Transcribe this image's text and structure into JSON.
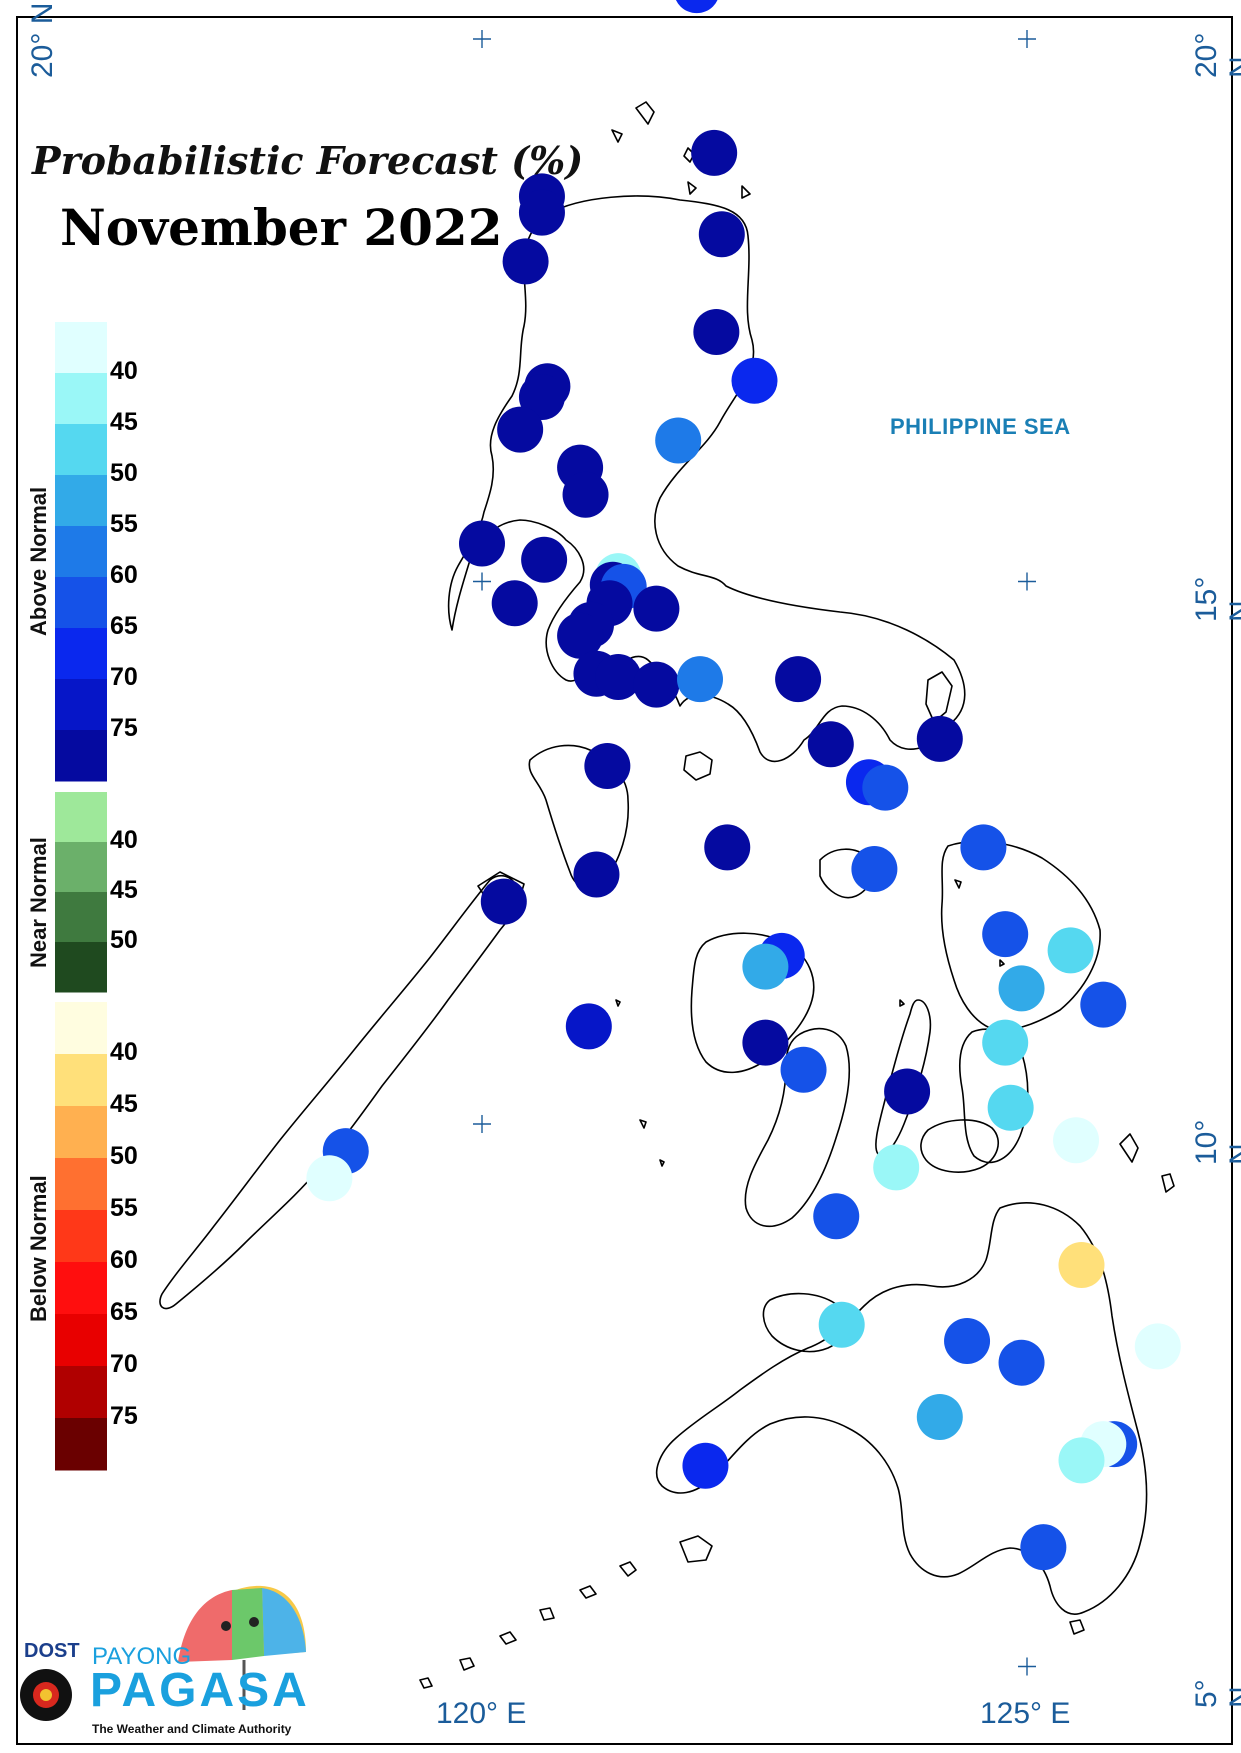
{
  "title": "Probabilistic Forecast (%)",
  "subtitle": "November 2022",
  "sea_label": "PHILIPPINE SEA",
  "lat_labels": [
    "20° N",
    "15° N",
    "10° N",
    "5° N"
  ],
  "lon_labels": [
    "120° E",
    "125° E"
  ],
  "legend": {
    "groups": [
      {
        "label": "Above Normal",
        "colors": [
          "#e0ffff",
          "#9af7f7",
          "#55d8f0",
          "#32aae8",
          "#1e7ae8",
          "#1552e8",
          "#0a28ee",
          "#0616c8",
          "#050aa0"
        ],
        "ticks": [
          "40",
          "45",
          "50",
          "55",
          "60",
          "65",
          "70",
          "75"
        ]
      },
      {
        "label": "Near Normal",
        "colors": [
          "#9ee89a",
          "#6bb06a",
          "#3f7a3f",
          "#1f4a1f"
        ],
        "ticks": [
          "40",
          "45",
          "50"
        ]
      },
      {
        "label": "Below Normal",
        "colors": [
          "#fffde0",
          "#ffe07a",
          "#ffb050",
          "#ff7030",
          "#ff3818",
          "#ff0e0e",
          "#e80000",
          "#b00000",
          "#6a0000"
        ],
        "ticks": [
          "40",
          "45",
          "50",
          "55",
          "60",
          "65",
          "70",
          "75"
        ]
      }
    ]
  },
  "stations": [
    {
      "lat": 20.45,
      "lon": 121.97,
      "color": "#0a28ee"
    },
    {
      "lat": 18.95,
      "lon": 122.13,
      "color": "#050aa0"
    },
    {
      "lat": 18.55,
      "lon": 120.55,
      "color": "#050aa0"
    },
    {
      "lat": 18.4,
      "lon": 120.55,
      "color": "#050aa0"
    },
    {
      "lat": 18.2,
      "lon": 122.2,
      "color": "#050aa0"
    },
    {
      "lat": 17.95,
      "lon": 120.4,
      "color": "#050aa0"
    },
    {
      "lat": 17.3,
      "lon": 122.15,
      "color": "#050aa0"
    },
    {
      "lat": 16.8,
      "lon": 120.6,
      "color": "#050aa0"
    },
    {
      "lat": 16.7,
      "lon": 120.55,
      "color": "#050aa0"
    },
    {
      "lat": 16.85,
      "lon": 122.5,
      "color": "#0a28ee"
    },
    {
      "lat": 16.4,
      "lon": 120.35,
      "color": "#050aa0"
    },
    {
      "lat": 16.05,
      "lon": 120.9,
      "color": "#050aa0"
    },
    {
      "lat": 16.3,
      "lon": 121.8,
      "color": "#1e7ae8"
    },
    {
      "lat": 15.8,
      "lon": 120.95,
      "color": "#050aa0"
    },
    {
      "lat": 15.35,
      "lon": 120.0,
      "color": "#050aa0"
    },
    {
      "lat": 15.2,
      "lon": 120.57,
      "color": "#050aa0"
    },
    {
      "lat": 15.05,
      "lon": 121.25,
      "color": "#9af7f7"
    },
    {
      "lat": 14.97,
      "lon": 121.2,
      "color": "#050aa0"
    },
    {
      "lat": 14.95,
      "lon": 121.3,
      "color": "#1552e8"
    },
    {
      "lat": 14.8,
      "lon": 121.17,
      "color": "#050aa0"
    },
    {
      "lat": 14.8,
      "lon": 120.3,
      "color": "#050aa0"
    },
    {
      "lat": 14.75,
      "lon": 121.6,
      "color": "#050aa0"
    },
    {
      "lat": 14.6,
      "lon": 121.0,
      "color": "#050aa0"
    },
    {
      "lat": 14.5,
      "lon": 120.9,
      "color": "#050aa0"
    },
    {
      "lat": 14.15,
      "lon": 121.05,
      "color": "#050aa0"
    },
    {
      "lat": 14.12,
      "lon": 121.25,
      "color": "#050aa0"
    },
    {
      "lat": 14.05,
      "lon": 121.6,
      "color": "#050aa0"
    },
    {
      "lat": 14.1,
      "lon": 122.0,
      "color": "#1e7ae8"
    },
    {
      "lat": 14.1,
      "lon": 122.9,
      "color": "#050aa0"
    },
    {
      "lat": 13.5,
      "lon": 123.2,
      "color": "#050aa0"
    },
    {
      "lat": 13.55,
      "lon": 124.2,
      "color": "#050aa0"
    },
    {
      "lat": 13.3,
      "lon": 121.15,
      "color": "#050aa0"
    },
    {
      "lat": 13.15,
      "lon": 123.55,
      "color": "#0a28ee"
    },
    {
      "lat": 13.1,
      "lon": 123.7,
      "color": "#1552e8"
    },
    {
      "lat": 12.55,
      "lon": 122.25,
      "color": "#050aa0"
    },
    {
      "lat": 12.35,
      "lon": 123.6,
      "color": "#1552e8"
    },
    {
      "lat": 12.55,
      "lon": 124.6,
      "color": "#1552e8"
    },
    {
      "lat": 12.3,
      "lon": 121.05,
      "color": "#050aa0"
    },
    {
      "lat": 12.05,
      "lon": 120.2,
      "color": "#050aa0"
    },
    {
      "lat": 11.75,
      "lon": 124.8,
      "color": "#1552e8"
    },
    {
      "lat": 11.6,
      "lon": 125.4,
      "color": "#55d8f0"
    },
    {
      "lat": 11.55,
      "lon": 122.75,
      "color": "#0a28ee"
    },
    {
      "lat": 11.45,
      "lon": 122.6,
      "color": "#32aae8"
    },
    {
      "lat": 11.25,
      "lon": 124.95,
      "color": "#32aae8"
    },
    {
      "lat": 11.1,
      "lon": 125.7,
      "color": "#1552e8"
    },
    {
      "lat": 10.9,
      "lon": 120.98,
      "color": "#0616c8"
    },
    {
      "lat": 10.75,
      "lon": 124.8,
      "color": "#55d8f0"
    },
    {
      "lat": 10.75,
      "lon": 122.6,
      "color": "#050aa0"
    },
    {
      "lat": 10.5,
      "lon": 122.95,
      "color": "#1552e8"
    },
    {
      "lat": 10.3,
      "lon": 123.9,
      "color": "#050aa0"
    },
    {
      "lat": 10.15,
      "lon": 124.85,
      "color": "#55d8f0"
    },
    {
      "lat": 9.85,
      "lon": 125.45,
      "color": "#e0ffff"
    },
    {
      "lat": 9.75,
      "lon": 118.75,
      "color": "#1552e8"
    },
    {
      "lat": 9.6,
      "lon": 123.8,
      "color": "#9af7f7"
    },
    {
      "lat": 9.5,
      "lon": 118.6,
      "color": "#e0ffff"
    },
    {
      "lat": 9.15,
      "lon": 123.25,
      "color": "#1552e8"
    },
    {
      "lat": 8.7,
      "lon": 125.5,
      "color": "#ffe07a"
    },
    {
      "lat": 8.15,
      "lon": 123.3,
      "color": "#55d8f0"
    },
    {
      "lat": 8.0,
      "lon": 124.45,
      "color": "#1552e8"
    },
    {
      "lat": 7.8,
      "lon": 124.95,
      "color": "#1552e8"
    },
    {
      "lat": 7.95,
      "lon": 126.2,
      "color": "#e0ffff"
    },
    {
      "lat": 7.3,
      "lon": 124.2,
      "color": "#32aae8"
    },
    {
      "lat": 7.05,
      "lon": 125.8,
      "color": "#1552e8"
    },
    {
      "lat": 7.05,
      "lon": 125.7,
      "color": "#e0ffff"
    },
    {
      "lat": 6.9,
      "lon": 125.5,
      "color": "#9af7f7"
    },
    {
      "lat": 6.85,
      "lon": 122.05,
      "color": "#0a28ee"
    },
    {
      "lat": 6.1,
      "lon": 125.15,
      "color": "#1552e8"
    }
  ],
  "logo": {
    "dost": "DOST",
    "payong": "PAYONG",
    "pagasa": "PAGASA",
    "tagline": "The Weather and Climate Authority"
  }
}
